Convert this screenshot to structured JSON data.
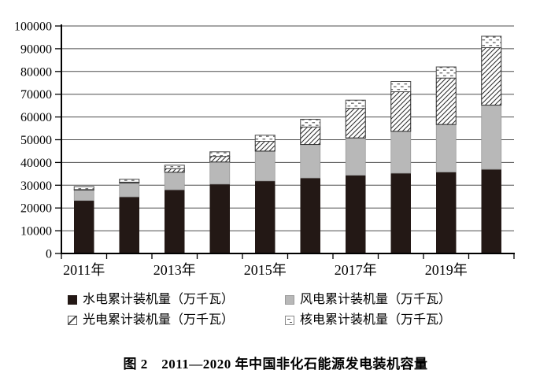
{
  "chart_data": {
    "type": "bar",
    "stacked": true,
    "title": "图 2　2011—2020 年中国非化石能源发电装机容量",
    "unit": "万千瓦",
    "categories": [
      "2011年",
      "2012年",
      "2013年",
      "2014年",
      "2015年",
      "2016年",
      "2017年",
      "2018年",
      "2019年",
      "2020年"
    ],
    "x_label_every": 2,
    "series": [
      {
        "name": "水电累计装机量（万千瓦）",
        "swatch": "solid-black",
        "color": "#231815",
        "values": [
          23300,
          24900,
          28000,
          30500,
          31900,
          33200,
          34400,
          35300,
          35800,
          37000
        ]
      },
      {
        "name": "风电累计装机量（万千瓦）",
        "swatch": "solid-gray",
        "color": "#b8b8b8",
        "values": [
          4600,
          6100,
          7700,
          9700,
          13100,
          14700,
          16400,
          18400,
          20900,
          28200
        ]
      },
      {
        "name": "光电累计装机量（万千瓦）",
        "swatch": "diagonal-hatch",
        "color": "#ffffff",
        "hatch_color": "#2a2a2a",
        "values": [
          200,
          350,
          1600,
          2500,
          4300,
          7700,
          13000,
          17400,
          20400,
          25300
        ]
      },
      {
        "name": "核电累计装机量（万千瓦）",
        "swatch": "dashed-dots",
        "color": "#ffffff",
        "hatch_color": "#4a4a4a",
        "values": [
          1300,
          1300,
          1500,
          2000,
          2700,
          3400,
          3600,
          4500,
          4900,
          5000
        ]
      }
    ],
    "ylim": [
      0,
      100000
    ],
    "ytick_step": 10000,
    "ytick_labels": [
      "0",
      "10000",
      "20000",
      "30000",
      "40000",
      "50000",
      "60000",
      "70000",
      "80000",
      "90000",
      "100000"
    ],
    "grid": true,
    "gridline_color": "#4d4d4d",
    "axis_color": "#000000",
    "legend_position": "bottom"
  }
}
